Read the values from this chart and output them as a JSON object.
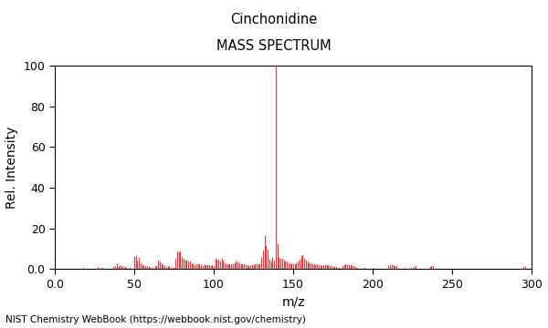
{
  "title1": "Cinchonidine",
  "title2": "MASS SPECTRUM",
  "xlabel": "m/z",
  "ylabel": "Rel. Intensity",
  "xlim": [
    0.0,
    300
  ],
  "ylim": [
    0.0,
    100
  ],
  "xticks": [
    0.0,
    50,
    100,
    150,
    200,
    250,
    300
  ],
  "yticks": [
    0,
    20,
    40,
    60,
    80,
    100
  ],
  "bar_color": "#ff3333",
  "background_color": "#ffffff",
  "footnote": "NIST Chemistry WebBook (https://webbook.nist.gov/chemistry)",
  "peaks": [
    [
      18,
      0.5
    ],
    [
      27,
      1.0
    ],
    [
      29,
      0.5
    ],
    [
      30,
      0.5
    ],
    [
      37,
      1.0
    ],
    [
      38,
      1.5
    ],
    [
      39,
      3.0
    ],
    [
      40,
      1.0
    ],
    [
      41,
      1.5
    ],
    [
      42,
      1.5
    ],
    [
      43,
      1.0
    ],
    [
      44,
      1.0
    ],
    [
      45,
      0.5
    ],
    [
      47,
      0.5
    ],
    [
      50,
      6.0
    ],
    [
      51,
      6.5
    ],
    [
      52,
      4.0
    ],
    [
      53,
      5.5
    ],
    [
      54,
      3.0
    ],
    [
      55,
      2.0
    ],
    [
      56,
      1.5
    ],
    [
      57,
      1.5
    ],
    [
      58,
      1.5
    ],
    [
      59,
      1.0
    ],
    [
      60,
      0.5
    ],
    [
      61,
      0.5
    ],
    [
      63,
      1.5
    ],
    [
      64,
      1.5
    ],
    [
      65,
      4.0
    ],
    [
      66,
      3.5
    ],
    [
      67,
      3.0
    ],
    [
      68,
      2.0
    ],
    [
      69,
      1.5
    ],
    [
      70,
      1.0
    ],
    [
      71,
      1.5
    ],
    [
      72,
      1.0
    ],
    [
      73,
      0.5
    ],
    [
      74,
      0.5
    ],
    [
      75,
      0.5
    ],
    [
      76,
      5.0
    ],
    [
      77,
      8.5
    ],
    [
      78,
      8.0
    ],
    [
      79,
      8.5
    ],
    [
      80,
      6.0
    ],
    [
      81,
      5.0
    ],
    [
      82,
      4.0
    ],
    [
      83,
      4.0
    ],
    [
      84,
      3.5
    ],
    [
      85,
      3.5
    ],
    [
      86,
      3.0
    ],
    [
      87,
      2.5
    ],
    [
      88,
      2.0
    ],
    [
      89,
      2.5
    ],
    [
      90,
      2.5
    ],
    [
      91,
      2.5
    ],
    [
      92,
      2.0
    ],
    [
      93,
      1.5
    ],
    [
      94,
      2.0
    ],
    [
      95,
      2.0
    ],
    [
      96,
      2.0
    ],
    [
      97,
      2.0
    ],
    [
      98,
      1.5
    ],
    [
      99,
      2.0
    ],
    [
      100,
      1.5
    ],
    [
      101,
      5.0
    ],
    [
      102,
      4.5
    ],
    [
      103,
      4.5
    ],
    [
      104,
      3.5
    ],
    [
      105,
      5.0
    ],
    [
      106,
      4.0
    ],
    [
      107,
      3.0
    ],
    [
      108,
      2.5
    ],
    [
      109,
      2.5
    ],
    [
      110,
      2.5
    ],
    [
      111,
      2.5
    ],
    [
      112,
      2.5
    ],
    [
      113,
      3.0
    ],
    [
      114,
      3.5
    ],
    [
      115,
      3.5
    ],
    [
      116,
      3.0
    ],
    [
      117,
      2.5
    ],
    [
      118,
      2.5
    ],
    [
      119,
      2.5
    ],
    [
      120,
      2.0
    ],
    [
      121,
      2.0
    ],
    [
      122,
      1.5
    ],
    [
      123,
      2.0
    ],
    [
      124,
      2.0
    ],
    [
      125,
      2.0
    ],
    [
      126,
      2.5
    ],
    [
      127,
      2.5
    ],
    [
      128,
      2.5
    ],
    [
      129,
      2.5
    ],
    [
      130,
      5.5
    ],
    [
      131,
      9.0
    ],
    [
      132,
      16.0
    ],
    [
      133,
      11.5
    ],
    [
      134,
      9.5
    ],
    [
      135,
      4.5
    ],
    [
      136,
      3.5
    ],
    [
      137,
      5.5
    ],
    [
      138,
      4.0
    ],
    [
      139,
      100.0
    ],
    [
      140,
      12.0
    ],
    [
      141,
      5.5
    ],
    [
      142,
      5.0
    ],
    [
      143,
      5.0
    ],
    [
      144,
      4.0
    ],
    [
      145,
      3.5
    ],
    [
      146,
      3.5
    ],
    [
      147,
      3.0
    ],
    [
      148,
      3.0
    ],
    [
      149,
      2.5
    ],
    [
      150,
      2.5
    ],
    [
      151,
      2.5
    ],
    [
      152,
      3.0
    ],
    [
      153,
      3.5
    ],
    [
      154,
      4.5
    ],
    [
      155,
      6.5
    ],
    [
      156,
      7.0
    ],
    [
      157,
      5.0
    ],
    [
      158,
      4.0
    ],
    [
      159,
      3.5
    ],
    [
      160,
      3.0
    ],
    [
      161,
      3.0
    ],
    [
      162,
      2.5
    ],
    [
      163,
      2.5
    ],
    [
      164,
      2.0
    ],
    [
      165,
      2.5
    ],
    [
      166,
      2.0
    ],
    [
      167,
      2.0
    ],
    [
      168,
      1.5
    ],
    [
      169,
      2.0
    ],
    [
      170,
      2.0
    ],
    [
      171,
      2.0
    ],
    [
      172,
      2.0
    ],
    [
      173,
      1.5
    ],
    [
      174,
      1.5
    ],
    [
      175,
      1.0
    ],
    [
      176,
      1.0
    ],
    [
      177,
      1.0
    ],
    [
      178,
      0.5
    ],
    [
      179,
      0.5
    ],
    [
      180,
      0.5
    ],
    [
      181,
      1.5
    ],
    [
      182,
      2.0
    ],
    [
      183,
      2.5
    ],
    [
      184,
      2.0
    ],
    [
      185,
      2.0
    ],
    [
      186,
      2.0
    ],
    [
      187,
      1.5
    ],
    [
      188,
      1.5
    ],
    [
      189,
      1.0
    ],
    [
      190,
      0.5
    ],
    [
      195,
      0.5
    ],
    [
      200,
      0.5
    ],
    [
      210,
      1.5
    ],
    [
      211,
      2.0
    ],
    [
      212,
      2.0
    ],
    [
      213,
      2.0
    ],
    [
      214,
      1.5
    ],
    [
      215,
      1.5
    ],
    [
      220,
      0.5
    ],
    [
      224,
      0.5
    ],
    [
      226,
      1.0
    ],
    [
      227,
      1.5
    ],
    [
      236,
      1.0
    ],
    [
      237,
      1.5
    ],
    [
      238,
      1.5
    ],
    [
      295,
      1.0
    ],
    [
      296,
      1.0
    ]
  ]
}
